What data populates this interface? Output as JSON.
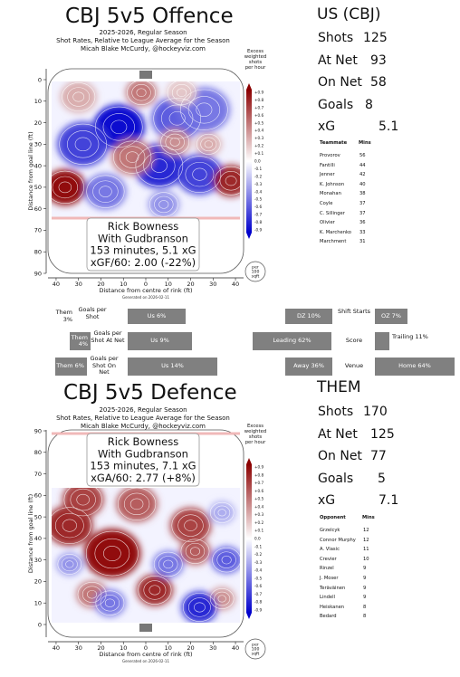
{
  "offence": {
    "title": "CBJ 5v5 Offence",
    "subtitle_1": "2025-2026, Regular Season",
    "subtitle_2": "Shot Rates, Relative to League Average for the Season",
    "subtitle_3": "Micah Blake McCurdy, @hockeyviz.com",
    "box_1": "Rick Bowness",
    "box_2": "With Gudbranson",
    "box_3": "153 minutes, 5.1 xG",
    "box_4": "xGF/60: 2.00 (-22%)",
    "generated": "Generated on 2026-02-11",
    "stats_head": "US (CBJ)",
    "stats": [
      {
        "label": "Shots",
        "value": "125"
      },
      {
        "label": "At Net",
        "value": "93"
      },
      {
        "label": "On Net",
        "value": "58"
      },
      {
        "label": "Goals",
        "value": "8"
      },
      {
        "label": "xG",
        "value": "5.1"
      }
    ],
    "table_head": {
      "name": "Teammate",
      "mins": "Mins"
    },
    "table": [
      {
        "name": "Provorov",
        "mins": "56"
      },
      {
        "name": "Fantilli",
        "mins": "44"
      },
      {
        "name": "Jenner",
        "mins": "42"
      },
      {
        "name": "K. Johnson",
        "mins": "40"
      },
      {
        "name": "Monahan",
        "mins": "38"
      },
      {
        "name": "Coyle",
        "mins": "37"
      },
      {
        "name": "C. Sillinger",
        "mins": "37"
      },
      {
        "name": "Olivier",
        "mins": "36"
      },
      {
        "name": "K. Marchenko",
        "mins": "33"
      },
      {
        "name": "Marchment",
        "mins": "31"
      }
    ]
  },
  "defence": {
    "title": "CBJ 5v5 Defence",
    "subtitle_1": "2025-2026, Regular Season",
    "subtitle_2": "Shot Rates, Relative to League Average for the Season",
    "subtitle_3": "Micah Blake McCurdy, @hockeyviz.com",
    "box_1": "Rick Bowness",
    "box_2": "With Gudbranson",
    "box_3": "153 minutes, 7.1 xG",
    "box_4": "xGA/60: 2.77 (+8%)",
    "generated": "Generated on 2026-02-11",
    "stats_head": "THEM",
    "stats": [
      {
        "label": "Shots",
        "value": "170"
      },
      {
        "label": "At Net",
        "value": "125"
      },
      {
        "label": "On Net",
        "value": "77"
      },
      {
        "label": "Goals",
        "value": "5"
      },
      {
        "label": "xG",
        "value": "7.1"
      }
    ],
    "table_head": {
      "name": "Opponent",
      "mins": "Mins"
    },
    "table": [
      {
        "name": "Grzelcyk",
        "mins": "12"
      },
      {
        "name": "Connor Murphy",
        "mins": "12"
      },
      {
        "name": "A. Vlasic",
        "mins": "11"
      },
      {
        "name": "Crevier",
        "mins": "10"
      },
      {
        "name": "Rinzel",
        "mins": "9"
      },
      {
        "name": "J. Moser",
        "mins": "9"
      },
      {
        "name": "Teräväinen",
        "mins": "9"
      },
      {
        "name": "Lindell",
        "mins": "9"
      },
      {
        "name": "Heiskanen",
        "mins": "8"
      },
      {
        "name": "Bedard",
        "mins": "8"
      }
    ]
  },
  "colorbar": {
    "title_1": "Excess",
    "title_2": "weighted",
    "title_3": "shots",
    "title_4": "per hour",
    "ticks": [
      "+0.9",
      "+0.8",
      "+0.7",
      "+0.6",
      "+0.5",
      "+0.4",
      "+0.3",
      "+0.2",
      "+0.1",
      "0.0",
      "-0.1",
      "-0.2",
      "-0.3",
      "-0.4",
      "-0.5",
      "-0.6",
      "-0.7",
      "-0.8",
      "-0.9"
    ],
    "unit_1": "per",
    "unit_2": "100",
    "unit_3": "sqft"
  },
  "shares": {
    "goals_label": "Goals per Shot",
    "shots_at_net_label": "Goals per Shot At Net",
    "shots_on_net_label": "Goals per Shot On Net",
    "rows": [
      {
        "them": "Them 3%",
        "us": "Us 6%",
        "them_frac": 0.03,
        "us_frac": 0.06
      },
      {
        "them": "Them 4%",
        "us": "Us 9%",
        "them_frac": 0.04,
        "us_frac": 0.09
      },
      {
        "them": "Them 6%",
        "us": "Us 14%",
        "them_frac": 0.06,
        "us_frac": 0.14
      }
    ],
    "zone_starts": {
      "label": "Shift Starts",
      "dz": "DZ 10%",
      "oz": "OZ 7%"
    },
    "score": {
      "label": "Score",
      "leading": "Leading 62%",
      "trailing": "Trailing 11%"
    },
    "venue": {
      "label": "Venue",
      "away": "Away 36%",
      "home": "Home 64%"
    }
  },
  "chart_data": [
    {
      "type": "heatmap",
      "title": "CBJ 5v5 Offence",
      "xlabel": "Distance from centre of rink (ft)",
      "ylabel": "Distance from goal line (ft)",
      "xticks": [
        "40",
        "30",
        "20",
        "10",
        "0",
        "10",
        "20",
        "30",
        "40"
      ],
      "yticks": [
        "0",
        "10",
        "20",
        "30",
        "40",
        "50",
        "60",
        "70",
        "80",
        "90"
      ],
      "ylim": [
        0,
        90
      ],
      "xlim": [
        -42,
        42
      ],
      "colorscale": {
        "min": -0.9,
        "max": 0.9,
        "low": "#0000cc",
        "mid": "#ffffff",
        "high": "#8b0000"
      },
      "blobs": [
        {
          "x": -12,
          "y": 22,
          "value": -0.9,
          "r": 10
        },
        {
          "x": 14,
          "y": 18,
          "value": -0.6,
          "r": 10
        },
        {
          "x": -28,
          "y": 30,
          "value": -0.7,
          "r": 10
        },
        {
          "x": 26,
          "y": 14,
          "value": -0.5,
          "r": 10
        },
        {
          "x": 6,
          "y": 40,
          "value": -0.8,
          "r": 10
        },
        {
          "x": 24,
          "y": 44,
          "value": -0.7,
          "r": 9
        },
        {
          "x": -18,
          "y": 52,
          "value": -0.5,
          "r": 8
        },
        {
          "x": 8,
          "y": 58,
          "value": -0.4,
          "r": 6
        },
        {
          "x": -36,
          "y": 50,
          "value": 0.9,
          "r": 8
        },
        {
          "x": -6,
          "y": 36,
          "value": 0.5,
          "r": 8
        },
        {
          "x": 38,
          "y": 47,
          "value": 0.8,
          "r": 7
        },
        {
          "x": 13,
          "y": 29,
          "value": 0.4,
          "r": 6
        },
        {
          "x": -2,
          "y": 6,
          "value": 0.5,
          "r": 6
        },
        {
          "x": -30,
          "y": 8,
          "value": 0.3,
          "r": 7
        },
        {
          "x": 16,
          "y": 6,
          "value": 0.2,
          "r": 6
        },
        {
          "x": 28,
          "y": 30,
          "value": 0.3,
          "r": 5
        }
      ]
    },
    {
      "type": "heatmap",
      "title": "CBJ 5v5 Defence",
      "xlabel": "Distance from centre of rink (ft)",
      "ylabel": "Distance from goal line (ft)",
      "xticks": [
        "40",
        "30",
        "20",
        "10",
        "0",
        "10",
        "20",
        "30",
        "40"
      ],
      "yticks": [
        "0",
        "10",
        "20",
        "30",
        "40",
        "50",
        "60",
        "70",
        "80",
        "90"
      ],
      "ylim": [
        0,
        90
      ],
      "xlim": [
        -42,
        42
      ],
      "colorscale": {
        "min": -0.9,
        "max": 0.9,
        "low": "#0000cc",
        "mid": "#ffffff",
        "high": "#8b0000"
      },
      "blobs": [
        {
          "x": -15,
          "y": 33,
          "value": 0.9,
          "r": 11
        },
        {
          "x": -34,
          "y": 46,
          "value": 0.8,
          "r": 9
        },
        {
          "x": -28,
          "y": 58,
          "value": 0.7,
          "r": 8
        },
        {
          "x": -4,
          "y": 56,
          "value": 0.6,
          "r": 8
        },
        {
          "x": 20,
          "y": 46,
          "value": 0.7,
          "r": 8
        },
        {
          "x": 4,
          "y": 16,
          "value": 0.8,
          "r": 7
        },
        {
          "x": 22,
          "y": 34,
          "value": 0.6,
          "r": 6
        },
        {
          "x": 34,
          "y": 12,
          "value": 0.4,
          "r": 5
        },
        {
          "x": -24,
          "y": 14,
          "value": 0.5,
          "r": 6
        },
        {
          "x": -16,
          "y": 10,
          "value": -0.5,
          "r": 6
        },
        {
          "x": 24,
          "y": 8,
          "value": -0.8,
          "r": 7
        },
        {
          "x": 36,
          "y": 30,
          "value": -0.6,
          "r": 6
        },
        {
          "x": 10,
          "y": 28,
          "value": -0.5,
          "r": 6
        },
        {
          "x": -34,
          "y": 28,
          "value": -0.4,
          "r": 5
        },
        {
          "x": 34,
          "y": 52,
          "value": -0.3,
          "r": 5
        }
      ]
    }
  ]
}
